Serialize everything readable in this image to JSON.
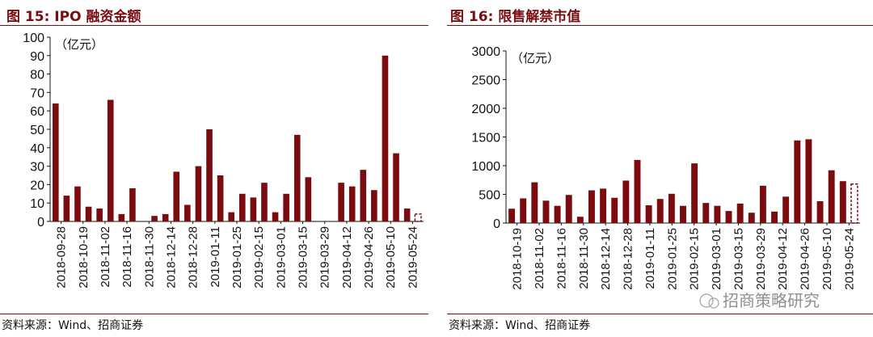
{
  "panels": [
    {
      "title": "图 15: IPO 融资金额",
      "source": "资料来源：Wind、招商证券",
      "chart_data": {
        "type": "bar",
        "unit_label": "（亿元）",
        "ylim": [
          0,
          100
        ],
        "yticks": [
          0,
          10,
          20,
          30,
          40,
          50,
          60,
          70,
          80,
          90,
          100
        ],
        "tick_labels": [
          "2018-09-28",
          "2018-10-19",
          "2018-11-02",
          "2018-11-16",
          "2018-11-30",
          "2018-12-14",
          "2018-12-28",
          "2019-01-11",
          "2019-01-25",
          "2019-02-15",
          "2019-03-01",
          "2019-03-15",
          "2019-03-29",
          "2019-04-12",
          "2019-04-26",
          "2019-05-10",
          "2019-05-24"
        ],
        "values": [
          64,
          14,
          19,
          8,
          7,
          66,
          4,
          18,
          0,
          3,
          4,
          27,
          9,
          30,
          50,
          25,
          5,
          15,
          13,
          21,
          5,
          15,
          47,
          24,
          0,
          0,
          21,
          19,
          28,
          17,
          90,
          37,
          7,
          4
        ],
        "last_dashed": true,
        "bar_color": "#7a0c10"
      }
    },
    {
      "title": "图 16: 限售解禁市值",
      "source": "资料来源：Wind、招商证券",
      "watermark": "招商策略研究",
      "chart_data": {
        "type": "bar",
        "unit_label": "（亿元）",
        "ylim": [
          0,
          3000
        ],
        "yticks": [
          0,
          500,
          1000,
          1500,
          2000,
          2500,
          3000
        ],
        "tick_labels": [
          "2018-10-19",
          "2018-11-02",
          "2018-11-16",
          "2018-11-30",
          "2018-12-14",
          "2018-12-28",
          "2019-01-11",
          "2019-01-25",
          "2019-02-15",
          "2019-03-01",
          "2019-03-15",
          "2019-03-29",
          "2019-04-12",
          "2019-04-26",
          "2019-05-10",
          "2019-05-24"
        ],
        "values": [
          250,
          430,
          710,
          390,
          300,
          490,
          110,
          570,
          600,
          440,
          740,
          1100,
          310,
          420,
          510,
          300,
          1040,
          350,
          300,
          210,
          340,
          180,
          650,
          200,
          460,
          1440,
          1460,
          380,
          920,
          730,
          680
        ],
        "last_dashed": true,
        "bar_color": "#7a0c10"
      }
    }
  ]
}
